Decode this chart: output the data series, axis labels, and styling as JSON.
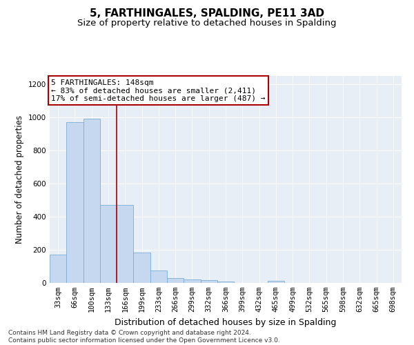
{
  "title": "5, FARTHINGALES, SPALDING, PE11 3AD",
  "subtitle": "Size of property relative to detached houses in Spalding",
  "xlabel": "Distribution of detached houses by size in Spalding",
  "ylabel": "Number of detached properties",
  "categories": [
    "33sqm",
    "66sqm",
    "100sqm",
    "133sqm",
    "166sqm",
    "199sqm",
    "233sqm",
    "266sqm",
    "299sqm",
    "332sqm",
    "366sqm",
    "399sqm",
    "432sqm",
    "465sqm",
    "499sqm",
    "532sqm",
    "565sqm",
    "598sqm",
    "632sqm",
    "665sqm",
    "698sqm"
  ],
  "values": [
    170,
    970,
    990,
    470,
    470,
    185,
    75,
    28,
    20,
    18,
    10,
    0,
    0,
    12,
    0,
    0,
    0,
    0,
    0,
    0,
    0
  ],
  "bar_color": "#c5d8ef",
  "bar_edge_color": "#7aadd4",
  "vline_color": "#aa0000",
  "annotation_text": "5 FARTHINGALES: 148sqm\n← 83% of detached houses are smaller (2,411)\n17% of semi-detached houses are larger (487) →",
  "annotation_box_color": "#ffffff",
  "annotation_box_edge_color": "#aa0000",
  "footer_text": "Contains HM Land Registry data © Crown copyright and database right 2024.\nContains public sector information licensed under the Open Government Licence v3.0.",
  "ylim": [
    0,
    1250
  ],
  "yticks": [
    0,
    200,
    400,
    600,
    800,
    1000,
    1200
  ],
  "bg_color": "#e8eef5",
  "title_fontsize": 11,
  "subtitle_fontsize": 9.5,
  "ylabel_fontsize": 8.5,
  "xlabel_fontsize": 9,
  "tick_fontsize": 7.5,
  "annot_fontsize": 8,
  "footer_fontsize": 6.5
}
